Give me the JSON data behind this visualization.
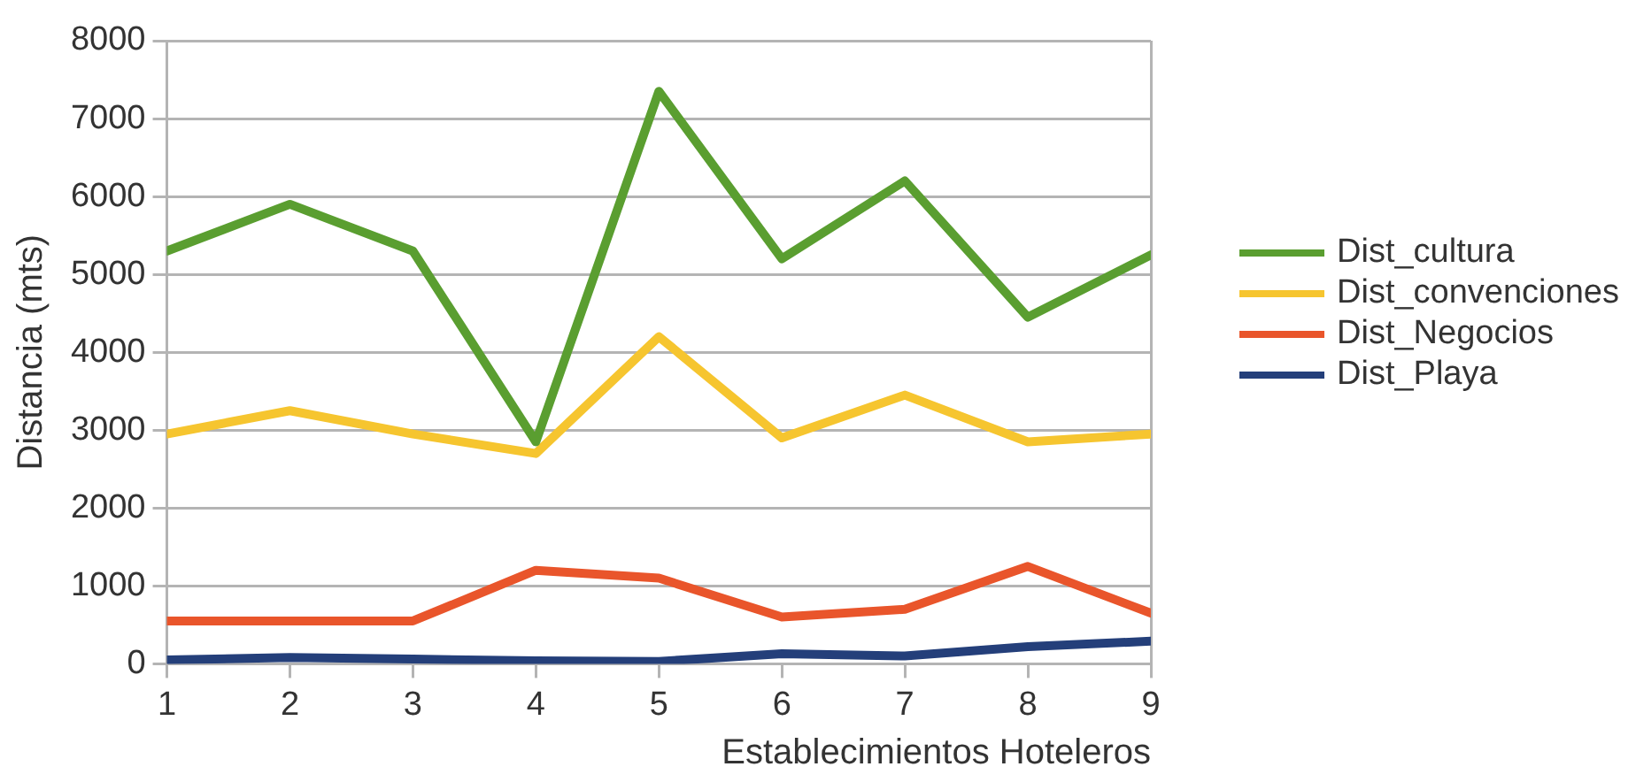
{
  "chart_data": {
    "type": "line",
    "xlabel": "Establecimientos Hoteleros",
    "ylabel": "Distancia (mts)",
    "x": [
      1,
      2,
      3,
      4,
      5,
      6,
      7,
      8,
      9
    ],
    "xlim": [
      1,
      9
    ],
    "xticks": [
      1,
      2,
      3,
      4,
      5,
      6,
      7,
      8,
      9
    ],
    "ylim": [
      0,
      8000
    ],
    "yticks": [
      0,
      1000,
      2000,
      3000,
      4000,
      5000,
      6000,
      7000,
      8000
    ],
    "grid": "y",
    "legend": "right",
    "series": [
      {
        "name": "Dist_cultura",
        "color": "#5a9e30",
        "values": [
          5300,
          5900,
          5300,
          2850,
          7350,
          5200,
          6200,
          4450,
          5250
        ]
      },
      {
        "name": "Dist_convenciones",
        "color": "#f6c52f",
        "values": [
          2950,
          3250,
          2950,
          2700,
          4200,
          2900,
          3450,
          2850,
          2950
        ]
      },
      {
        "name": "Dist_Negocios",
        "color": "#e9552b",
        "values": [
          550,
          550,
          550,
          1200,
          1100,
          600,
          700,
          1250,
          650
        ]
      },
      {
        "name": "Dist_Playa",
        "color": "#243f7a",
        "values": [
          50,
          80,
          60,
          40,
          30,
          130,
          100,
          220,
          290
        ]
      }
    ]
  }
}
